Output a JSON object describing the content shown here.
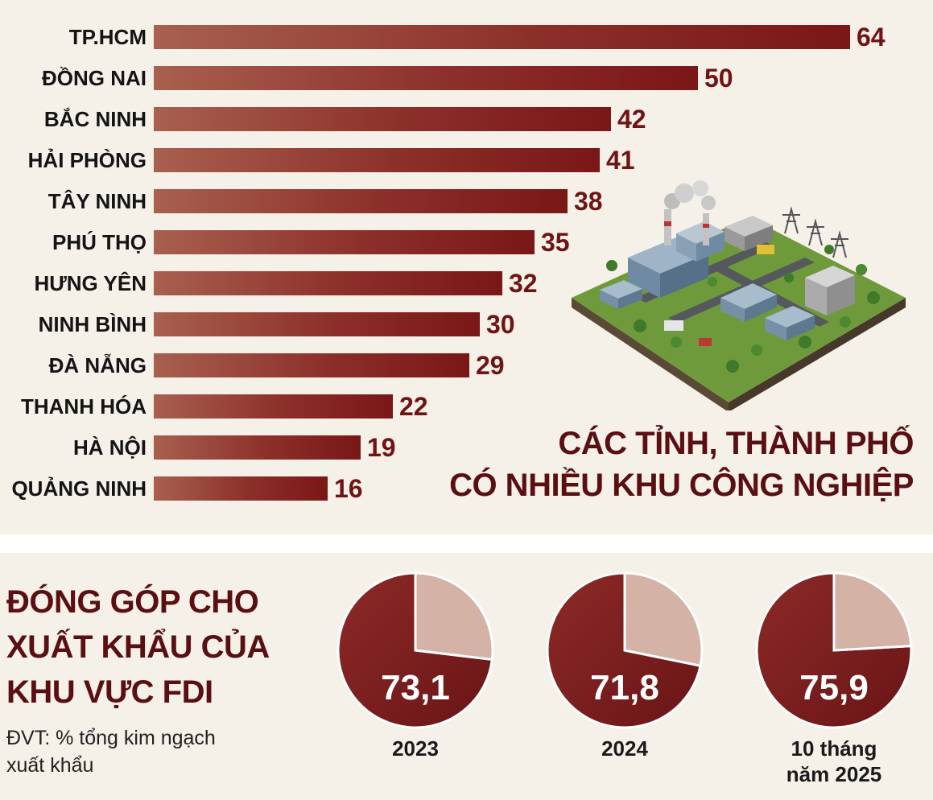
{
  "chart_data": [
    {
      "type": "bar",
      "orientation": "horizontal",
      "title": "CÁC TỈNH, THÀNH PHỐ CÓ NHIỀU KHU CÔNG NGHIỆP",
      "categories": [
        "TP.HCM",
        "ĐỒNG NAI",
        "BẮC NINH",
        "HẢI PHÒNG",
        "TÂY NINH",
        "PHÚ THỌ",
        "HƯNG YÊN",
        "NINH BÌNH",
        "ĐÀ NẴNG",
        "THANH HÓA",
        "HÀ NỘI",
        "QUẢNG NINH"
      ],
      "values": [
        64,
        50,
        42,
        41,
        38,
        35,
        32,
        30,
        29,
        22,
        19,
        16
      ],
      "value_labels": [
        "64",
        "50",
        "42",
        "41",
        "38",
        "35",
        "32",
        "30",
        "29",
        "22",
        "19",
        "16"
      ],
      "xlim": [
        0,
        64
      ],
      "grid": false,
      "colors": {
        "bar_start": "#a8604f",
        "bar_end": "#7a1717",
        "value_text": "#6e1414"
      }
    },
    {
      "type": "pie",
      "title": "ĐÓNG GÓP CHO XUẤT KHẨU CỦA KHU VỰC FDI",
      "note": "ĐVT: % tổng kim ngạch xuất khẩu",
      "pies": [
        {
          "label": "2023",
          "value": 73.1,
          "value_label": "73,1"
        },
        {
          "label": "2024",
          "value": 71.8,
          "value_label": "71,8"
        },
        {
          "label": "10 tháng năm 2025",
          "value": 75.9,
          "value_label": "75,9"
        }
      ],
      "colors": {
        "main": "#8c2a28",
        "main_dark": "#6a1416",
        "rest": "#d4b2a6"
      }
    }
  ],
  "titles": {
    "bar_title_line1": "CÁC TỈNH, THÀNH PHỐ",
    "bar_title_line2": "CÓ NHIỀU KHU CÔNG NGHIỆP",
    "pie_title_line1": "ĐÓNG GÓP CHO",
    "pie_title_line2": "XUẤT KHẨU CỦA",
    "pie_title_line3": "KHU VỰC FDI",
    "unit_line1": "ĐVT: % tổng kim ngạch",
    "unit_line2": "xuất khẩu"
  },
  "pie_years": {
    "y2023": "2023",
    "y2024": "2024",
    "y2025_line1": "10 tháng",
    "y2025_line2": "năm 2025"
  },
  "illustration": {
    "icon": "industrial-park-icon"
  }
}
